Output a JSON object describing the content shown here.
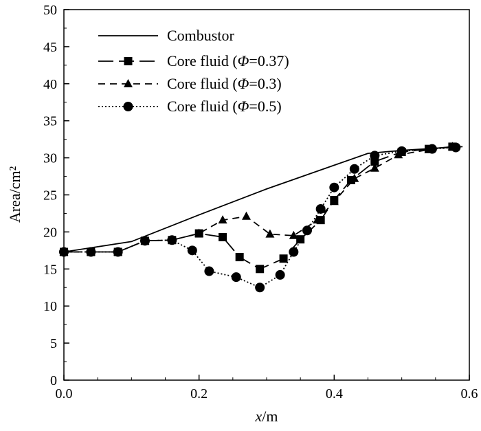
{
  "chart_data": {
    "type": "line",
    "xlabel": "x/m",
    "xlabel_var": "x",
    "xlabel_unit": "/m",
    "ylabel": "Area/cm²",
    "xlim": [
      0,
      0.6
    ],
    "ylim": [
      0,
      50
    ],
    "xticks": [
      "0.0",
      "0.2",
      "0.4",
      "0.6"
    ],
    "yticks": [
      "0",
      "5",
      "10",
      "15",
      "20",
      "25",
      "30",
      "35",
      "40",
      "45",
      "50"
    ],
    "grid": false,
    "legend_position": "top-left",
    "series": [
      {
        "name": "Combustor",
        "style": "solid",
        "marker": "none",
        "x": [
          0.0,
          0.1,
          0.2,
          0.3,
          0.35,
          0.4,
          0.45,
          0.5,
          0.55,
          0.59
        ],
        "y": [
          17.3,
          18.7,
          22.3,
          25.8,
          27.4,
          29.0,
          30.6,
          31.0,
          31.3,
          31.5
        ]
      },
      {
        "name": "Core fluid (Φ=0.37)",
        "name_prefix": "Core fluid (",
        "name_symbol": "Φ",
        "name_suffix": "=0.37)",
        "style": "long-dash",
        "marker": "square",
        "x": [
          0.0,
          0.04,
          0.08,
          0.12,
          0.16,
          0.2,
          0.235,
          0.26,
          0.29,
          0.325,
          0.35,
          0.38,
          0.4,
          0.425,
          0.46,
          0.5,
          0.54,
          0.575
        ],
        "y": [
          17.3,
          17.3,
          17.3,
          18.8,
          18.9,
          19.8,
          19.3,
          16.6,
          15.0,
          16.4,
          19.0,
          21.6,
          24.3,
          27.0,
          29.5,
          30.8,
          31.2,
          31.5
        ]
      },
      {
        "name": "Core fluid (Φ=0.3)",
        "name_prefix": "Core fluid (",
        "name_symbol": "Φ",
        "name_suffix": "=0.3)",
        "style": "dash",
        "marker": "triangle",
        "x": [
          0.0,
          0.04,
          0.08,
          0.12,
          0.16,
          0.2,
          0.235,
          0.27,
          0.305,
          0.34,
          0.375,
          0.4,
          0.43,
          0.46,
          0.495,
          0.54,
          0.575
        ],
        "y": [
          17.3,
          17.3,
          17.3,
          18.8,
          18.9,
          19.8,
          21.6,
          22.1,
          19.7,
          19.5,
          21.6,
          24.1,
          27.2,
          28.6,
          30.4,
          31.1,
          31.5
        ]
      },
      {
        "name": "Core fluid (Φ=0.5)",
        "name_prefix": "Core fluid (",
        "name_symbol": "Φ",
        "name_suffix": "=0.5)",
        "style": "dotted",
        "marker": "circle",
        "x": [
          0.0,
          0.04,
          0.08,
          0.12,
          0.16,
          0.19,
          0.215,
          0.255,
          0.29,
          0.32,
          0.34,
          0.36,
          0.38,
          0.4,
          0.43,
          0.46,
          0.5,
          0.545,
          0.58
        ],
        "y": [
          17.3,
          17.3,
          17.3,
          18.8,
          18.9,
          17.5,
          14.7,
          13.9,
          12.5,
          14.2,
          17.3,
          20.2,
          23.1,
          26.0,
          28.5,
          30.3,
          30.9,
          31.2,
          31.4
        ]
      }
    ]
  }
}
